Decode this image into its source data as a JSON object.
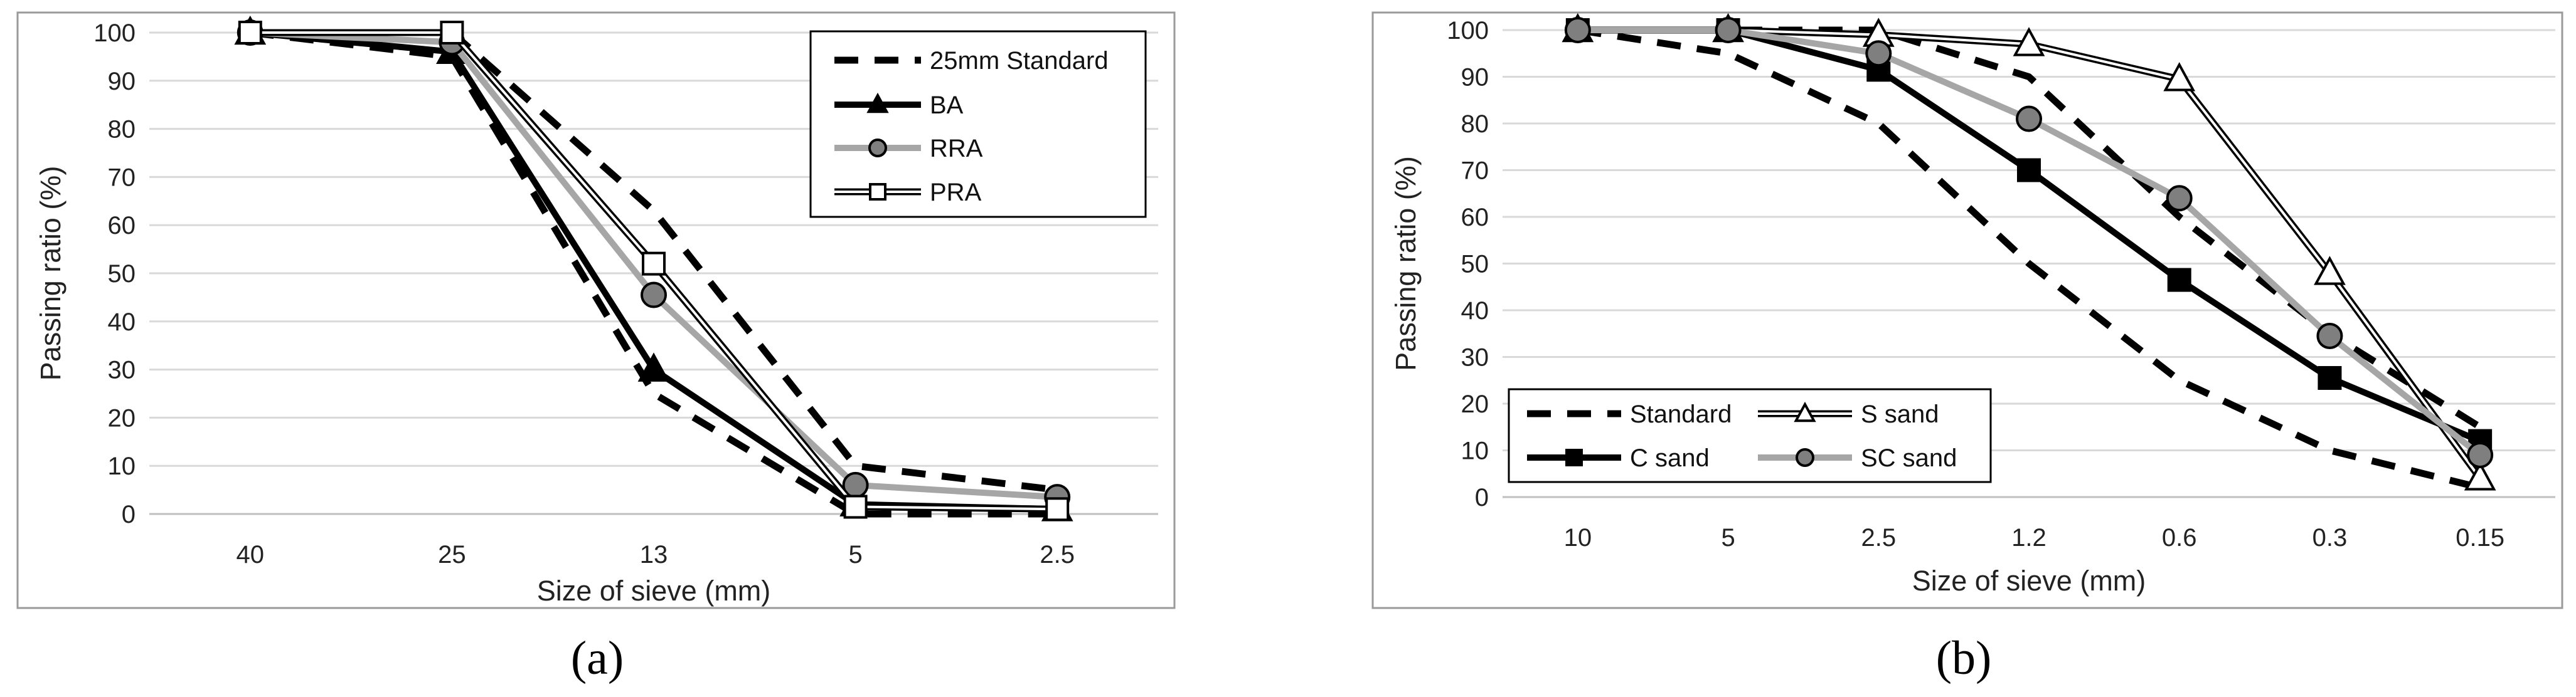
{
  "chart_data": [
    {
      "type": "line",
      "panel_label": "(a)",
      "xlabel": "Size of sieve (mm)",
      "ylabel": "Passing ratio (%)",
      "categories": [
        "40",
        "25",
        "13",
        "5",
        "2.5"
      ],
      "ylim": [
        0,
        100
      ],
      "yticks": [
        0,
        10,
        20,
        30,
        40,
        50,
        60,
        70,
        80,
        90,
        100
      ],
      "grid": true,
      "legend_position": "top-right",
      "series": [
        {
          "name": "25mm Standard",
          "style": "dashed",
          "color": "#000000",
          "marker": "none",
          "band_upper": [
            100,
            100,
            63,
            10,
            5
          ],
          "band_lower": [
            100,
            95,
            25,
            0,
            0
          ]
        },
        {
          "name": "BA",
          "style": "solid",
          "color": "#000000",
          "marker": "triangle",
          "values": [
            100,
            96,
            30,
            2,
            1
          ]
        },
        {
          "name": "RRA",
          "style": "solid",
          "color": "#a6a6a6",
          "marker": "circle",
          "values": [
            100,
            98,
            45.5,
            6,
            3.5
          ]
        },
        {
          "name": "PRA",
          "style": "double",
          "color": "#000000",
          "marker": "square",
          "values": [
            100,
            100,
            52,
            1.5,
            1
          ]
        }
      ]
    },
    {
      "type": "line",
      "panel_label": "(b)",
      "xlabel": "Size of sieve (mm)",
      "ylabel": "Passing ratio (%)",
      "categories": [
        "10",
        "5",
        "2.5",
        "1.2",
        "0.6",
        "0.3",
        "0.15"
      ],
      "ylim": [
        0,
        100
      ],
      "yticks": [
        0,
        10,
        20,
        30,
        40,
        50,
        60,
        70,
        80,
        90,
        100
      ],
      "grid": true,
      "legend_position": "bottom-left",
      "series": [
        {
          "name": "Standard",
          "style": "dashed",
          "color": "#000000",
          "marker": "none",
          "band_upper": [
            100,
            100,
            100,
            90,
            60,
            35,
            15
          ],
          "band_lower": [
            100,
            95,
            80,
            50,
            25,
            10,
            2
          ]
        },
        {
          "name": "S sand",
          "style": "double",
          "color": "#000000",
          "marker": "triangle",
          "values": [
            100,
            100,
            99,
            97,
            89.5,
            48,
            4
          ]
        },
        {
          "name": "C sand",
          "style": "solid",
          "color": "#000000",
          "marker": "square",
          "values": [
            100,
            100,
            91.5,
            70,
            46.5,
            25.5,
            12
          ]
        },
        {
          "name": "SC sand",
          "style": "solid",
          "color": "#a6a6a6",
          "marker": "circle",
          "values": [
            100,
            100,
            95,
            81,
            64,
            34.5,
            9
          ]
        }
      ]
    }
  ]
}
